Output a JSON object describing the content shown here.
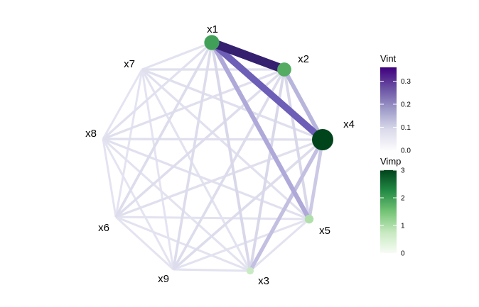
{
  "chart_data": {
    "type": "network",
    "nodes": [
      {
        "id": "x1",
        "label": "x1",
        "vimp": 1.8
      },
      {
        "id": "x2",
        "label": "x2",
        "vimp": 1.6
      },
      {
        "id": "x4",
        "label": "x4",
        "vimp": 3.0
      },
      {
        "id": "x5",
        "label": "x5",
        "vimp": 0.6
      },
      {
        "id": "x3",
        "label": "x3",
        "vimp": 0.3
      },
      {
        "id": "x9",
        "label": "x9",
        "vimp": 0.0
      },
      {
        "id": "x6",
        "label": "x6",
        "vimp": 0.0
      },
      {
        "id": "x8",
        "label": "x8",
        "vimp": 0.0
      },
      {
        "id": "x7",
        "label": "x7",
        "vimp": 0.0
      }
    ],
    "edges": [
      {
        "source": "x1",
        "target": "x2",
        "vint": 0.35
      },
      {
        "source": "x1",
        "target": "x4",
        "vint": 0.25
      },
      {
        "source": "x1",
        "target": "x5",
        "vint": 0.14
      },
      {
        "source": "x2",
        "target": "x4",
        "vint": 0.12
      },
      {
        "source": "x4",
        "target": "x3",
        "vint": 0.1
      },
      {
        "source": "x4",
        "target": "x5",
        "vint": 0.08
      },
      {
        "source": "x1",
        "target": "x3",
        "vint": 0.05
      },
      {
        "source": "x2",
        "target": "x3",
        "vint": 0.05
      },
      {
        "source": "x2",
        "target": "x5",
        "vint": 0.05
      },
      {
        "source": "x1",
        "target": "x6",
        "vint": 0.04
      },
      {
        "source": "x1",
        "target": "x9",
        "vint": 0.04
      },
      {
        "source": "x2",
        "target": "x9",
        "vint": 0.04
      },
      {
        "source": "x4",
        "target": "x9",
        "vint": 0.04
      },
      {
        "source": "x2",
        "target": "x6",
        "vint": 0.035
      },
      {
        "source": "x2",
        "target": "x7",
        "vint": 0.03
      },
      {
        "source": "x4",
        "target": "x7",
        "vint": 0.03
      },
      {
        "source": "x4",
        "target": "x8",
        "vint": 0.03
      },
      {
        "source": "x4",
        "target": "x6",
        "vint": 0.03
      },
      {
        "source": "x2",
        "target": "x8",
        "vint": 0.03
      },
      {
        "source": "x1",
        "target": "x8",
        "vint": 0.025
      },
      {
        "source": "x7",
        "target": "x5",
        "vint": 0.025
      },
      {
        "source": "x8",
        "target": "x5",
        "vint": 0.025
      },
      {
        "source": "x1",
        "target": "x7",
        "vint": 0.02
      },
      {
        "source": "x7",
        "target": "x3",
        "vint": 0.02
      },
      {
        "source": "x8",
        "target": "x3",
        "vint": 0.02
      },
      {
        "source": "x6",
        "target": "x5",
        "vint": 0.02
      },
      {
        "source": "x6",
        "target": "x3",
        "vint": 0.02
      },
      {
        "source": "x9",
        "target": "x5",
        "vint": 0.02
      },
      {
        "source": "x9",
        "target": "x3",
        "vint": 0.02
      },
      {
        "source": "x5",
        "target": "x3",
        "vint": 0.02
      },
      {
        "source": "x7",
        "target": "x8",
        "vint": 0.015
      },
      {
        "source": "x7",
        "target": "x6",
        "vint": 0.015
      },
      {
        "source": "x7",
        "target": "x9",
        "vint": 0.015
      },
      {
        "source": "x8",
        "target": "x6",
        "vint": 0.015
      },
      {
        "source": "x8",
        "target": "x9",
        "vint": 0.015
      },
      {
        "source": "x6",
        "target": "x9",
        "vint": 0.015
      }
    ],
    "legend_vint": {
      "title": "Vint",
      "ticks": [
        0.0,
        0.1,
        0.2,
        0.3
      ],
      "tick_labels": [
        "0.0",
        "0.1",
        "0.2",
        "0.3"
      ],
      "range": [
        0,
        0.36
      ],
      "colors": [
        "#fcfbfd",
        "#dadaeb",
        "#9e9ac8",
        "#6a51a3",
        "#3f007d"
      ]
    },
    "legend_vimp": {
      "title": "Vimp",
      "ticks": [
        0,
        1,
        2,
        3
      ],
      "tick_labels": [
        "0",
        "1",
        "2",
        "3"
      ],
      "range": [
        0,
        3
      ],
      "colors": [
        "#f7fcf5",
        "#c7e9c0",
        "#74c476",
        "#238b45",
        "#00441b"
      ]
    },
    "legend_placement": "right"
  }
}
